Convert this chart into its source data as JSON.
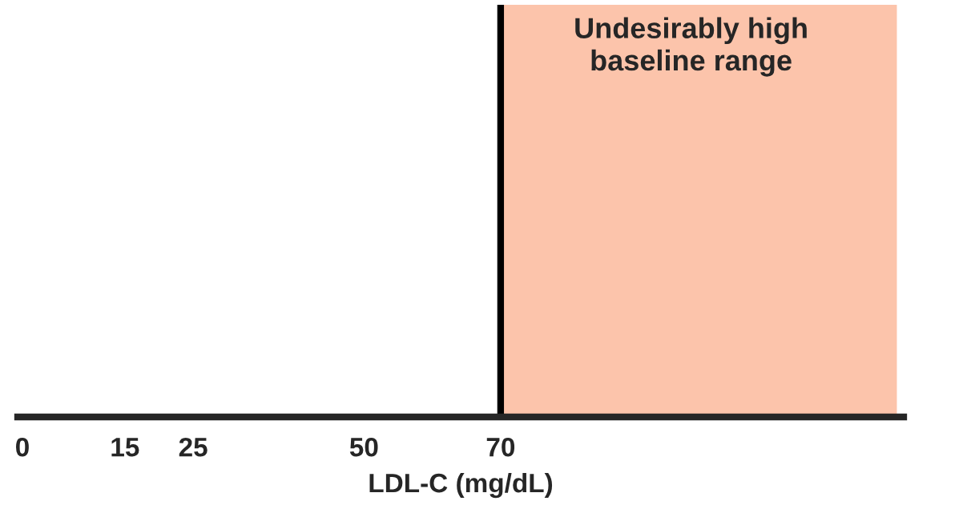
{
  "chart_data": {
    "type": "bar",
    "orientation": "horizontal",
    "xlabel": "LDL-C (mg/dL)",
    "xlim": [
      -0.7,
      129
    ],
    "xticks": [
      0,
      15,
      25,
      50,
      70
    ],
    "categories": [
      null
    ],
    "values": [
      58
    ],
    "base": [
      70
    ],
    "colors": [
      "#fcc4ab"
    ],
    "annotations": [
      "Undesirably high\nbaseline range"
    ],
    "ref_lines": [
      {
        "axis": "x",
        "value": 70,
        "color": "#000000",
        "line_style": "solid"
      }
    ],
    "tick_labels": "x"
  }
}
